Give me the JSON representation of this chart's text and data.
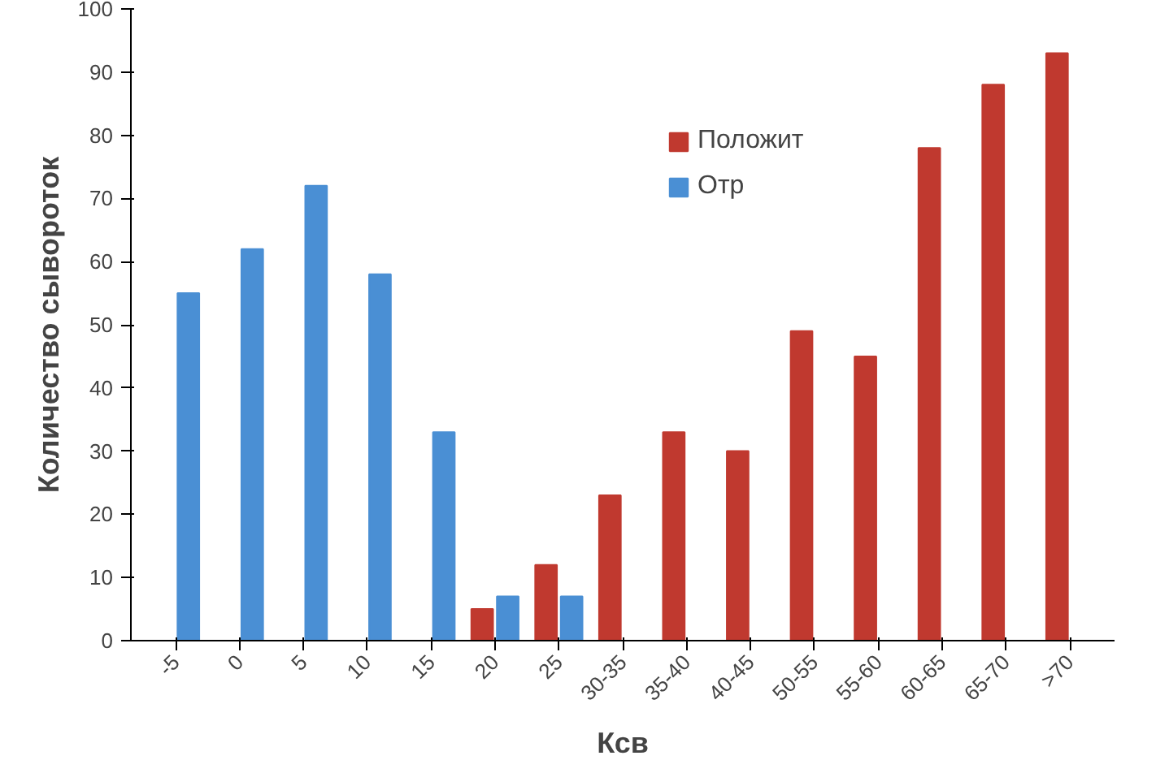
{
  "chart_data": {
    "type": "bar",
    "xlabel": "Ксв",
    "ylabel": "Количество сывороток",
    "categories": [
      "-5",
      "0",
      "5",
      "10",
      "15",
      "20",
      "25",
      "30-35",
      "35-40",
      "40-45",
      "50-55",
      "55-60",
      "60-65",
      "65-70",
      ">70"
    ],
    "series": [
      {
        "name": "Положит",
        "color": "#c0392f",
        "values": [
          null,
          null,
          null,
          null,
          null,
          5,
          12,
          23,
          33,
          30,
          49,
          45,
          78,
          88,
          93
        ]
      },
      {
        "name": "Отр",
        "color": "#4a8fd4",
        "values": [
          55,
          62,
          72,
          58,
          33,
          7,
          7,
          null,
          null,
          null,
          null,
          null,
          null,
          null,
          null
        ]
      }
    ],
    "ylim": [
      0,
      100
    ],
    "yticks": [
      0,
      10,
      20,
      30,
      40,
      50,
      60,
      70,
      80,
      90,
      100
    ],
    "grid": false,
    "legend": "top right"
  }
}
